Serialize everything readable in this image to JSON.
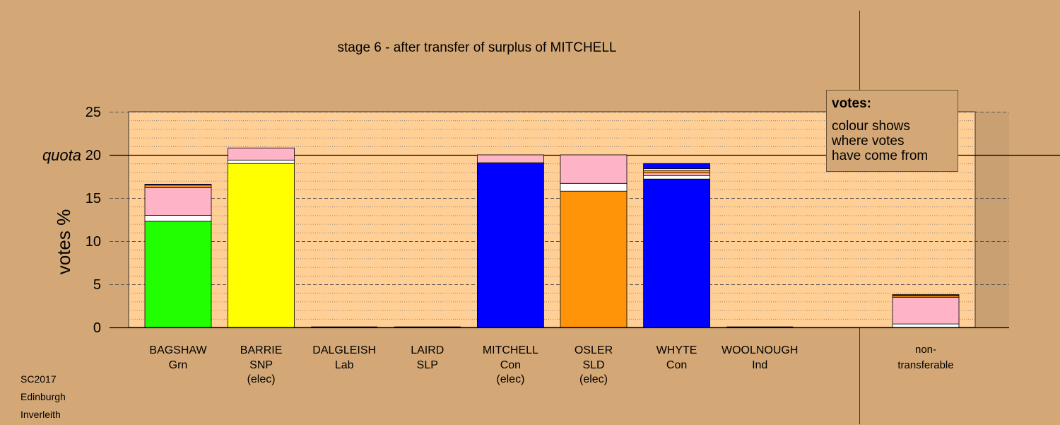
{
  "chart_data": {
    "type": "bar",
    "title": "stage 6 - after transfer of surplus of MITCHELL",
    "ylabel": "votes %",
    "ylim": [
      0,
      25
    ],
    "yticks": [
      0,
      5,
      10,
      15,
      20,
      25
    ],
    "quota": 20,
    "quota_label": "quota",
    "grid": true,
    "colors": {
      "grn": "#22FF00",
      "snp": "#FFFF00",
      "con": "#0000FF",
      "sld": "#FF9408",
      "transfers": "#FFB3C6",
      "other": "#FFFFFF",
      "plot_bg": "#FFCF96",
      "page_bg": "#D4A876"
    },
    "candidates": [
      {
        "name": "BAGSHAW",
        "party": "Grn",
        "status": "",
        "total": 16.6,
        "segments": [
          {
            "source": "own",
            "color": "#22FF00",
            "value": 12.3
          },
          {
            "source": "other",
            "color": "#FFFFFF",
            "value": 0.7
          },
          {
            "source": "transfers",
            "color": "#FFB3C6",
            "value": 3.2
          },
          {
            "source": "sld",
            "color": "#FF9408",
            "value": 0.3
          },
          {
            "source": "con",
            "color": "#0000FF",
            "value": 0.1
          }
        ]
      },
      {
        "name": "BARRIE",
        "party": "SNP",
        "status": "(elec)",
        "total": 20.8,
        "segments": [
          {
            "source": "own",
            "color": "#FFFF00",
            "value": 19.0
          },
          {
            "source": "other",
            "color": "#FFFFFF",
            "value": 0.4
          },
          {
            "source": "transfers",
            "color": "#FFB3C6",
            "value": 1.4
          }
        ]
      },
      {
        "name": "DALGLEISH",
        "party": "Lab",
        "status": "",
        "total": 0,
        "segments": [
          {
            "source": "own",
            "color": "#FFFFFF",
            "value": 0
          }
        ]
      },
      {
        "name": "LAIRD",
        "party": "SLP",
        "status": "",
        "total": 0,
        "segments": [
          {
            "source": "own",
            "color": "#FFFFFF",
            "value": 0
          }
        ]
      },
      {
        "name": "MITCHELL",
        "party": "Con",
        "status": "(elec)",
        "total": 20.0,
        "segments": [
          {
            "source": "own",
            "color": "#0000FF",
            "value": 19.0
          },
          {
            "source": "other",
            "color": "#FFFFFF",
            "value": 0.1
          },
          {
            "source": "transfers",
            "color": "#FFB3C6",
            "value": 0.9
          }
        ]
      },
      {
        "name": "OSLER",
        "party": "SLD",
        "status": "(elec)",
        "total": 20.0,
        "segments": [
          {
            "source": "own",
            "color": "#FF9408",
            "value": 15.8
          },
          {
            "source": "other",
            "color": "#FFFFFF",
            "value": 0.9
          },
          {
            "source": "transfers",
            "color": "#FFB3C6",
            "value": 3.3
          }
        ]
      },
      {
        "name": "WHYTE",
        "party": "Con",
        "status": "",
        "total": 19.0,
        "segments": [
          {
            "source": "own",
            "color": "#0000FF",
            "value": 17.2
          },
          {
            "source": "other",
            "color": "#FFFFFF",
            "value": 0.4
          },
          {
            "source": "transfers",
            "color": "#FFB3C6",
            "value": 0.3
          },
          {
            "source": "sld",
            "color": "#FF9408",
            "value": 0.3
          },
          {
            "source": "other",
            "color": "#FFFFFF",
            "value": 0.2
          },
          {
            "source": "con",
            "color": "#0000FF",
            "value": 0.6
          }
        ]
      },
      {
        "name": "WOOLNOUGH",
        "party": "Ind",
        "status": "",
        "total": 0,
        "segments": [
          {
            "source": "own",
            "color": "#FFFFFF",
            "value": 0
          }
        ]
      }
    ],
    "non_transferable": {
      "label_line1": "non-",
      "label_line2": "transferable",
      "total": 3.8,
      "segments": [
        {
          "source": "other",
          "color": "#FFFFFF",
          "value": 0.4
        },
        {
          "source": "transfers",
          "color": "#FFB3C6",
          "value": 3.1
        },
        {
          "source": "sld",
          "color": "#FF9408",
          "value": 0.2
        },
        {
          "source": "con",
          "color": "#0000FF",
          "value": 0.1
        }
      ]
    }
  },
  "legend": {
    "title": "votes:",
    "lines": [
      "colour shows",
      "where votes",
      "have come from"
    ]
  },
  "footer": {
    "lines": [
      "SC2017",
      "Edinburgh",
      "Inverleith"
    ]
  }
}
